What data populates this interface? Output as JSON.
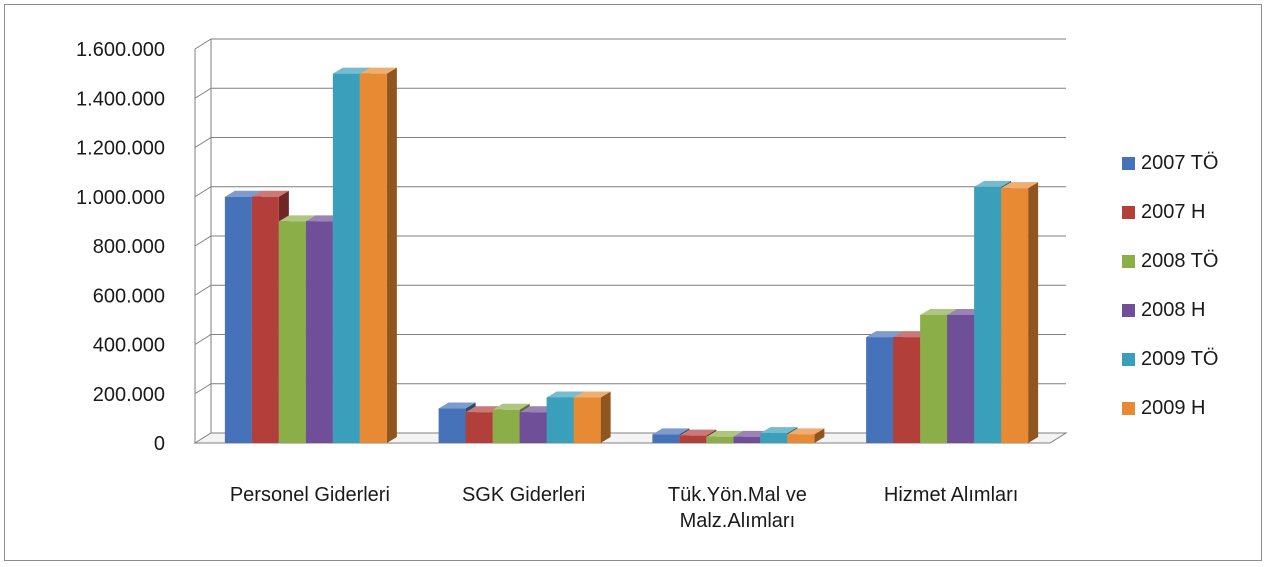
{
  "chart_data": {
    "type": "bar",
    "style": "3d-clustered-column",
    "categories": [
      [
        "Personel Giderleri"
      ],
      [
        "SGK Giderleri"
      ],
      [
        "Tük.Yön.Mal ve",
        "Malz.Alımları"
      ],
      [
        "Hizmet Alımları"
      ]
    ],
    "series": [
      {
        "name": "2007 TÖ",
        "color": "#4572b8",
        "values": [
          1000000,
          140000,
          35000,
          430000
        ]
      },
      {
        "name": "2007 H",
        "color": "#b33f3b",
        "values": [
          1000000,
          125000,
          30000,
          430000
        ]
      },
      {
        "name": "2008 TÖ",
        "color": "#8bae48",
        "values": [
          900000,
          135000,
          25000,
          520000
        ]
      },
      {
        "name": "2008 H",
        "color": "#6f4f97",
        "values": [
          900000,
          125000,
          25000,
          520000
        ]
      },
      {
        "name": "2009 TÖ",
        "color": "#3a9fbb",
        "values": [
          1500000,
          185000,
          40000,
          1040000
        ]
      },
      {
        "name": "2009 H",
        "color": "#e88a33",
        "values": [
          1500000,
          185000,
          35000,
          1035000
        ]
      }
    ],
    "yticks": [
      "0",
      "200.000",
      "400.000",
      "600.000",
      "800.000",
      "1.000.000",
      "1.200.000",
      "1.400.000",
      "1.600.000"
    ],
    "ylim": [
      0,
      1600000
    ],
    "grid": true,
    "legend_position": "right"
  }
}
